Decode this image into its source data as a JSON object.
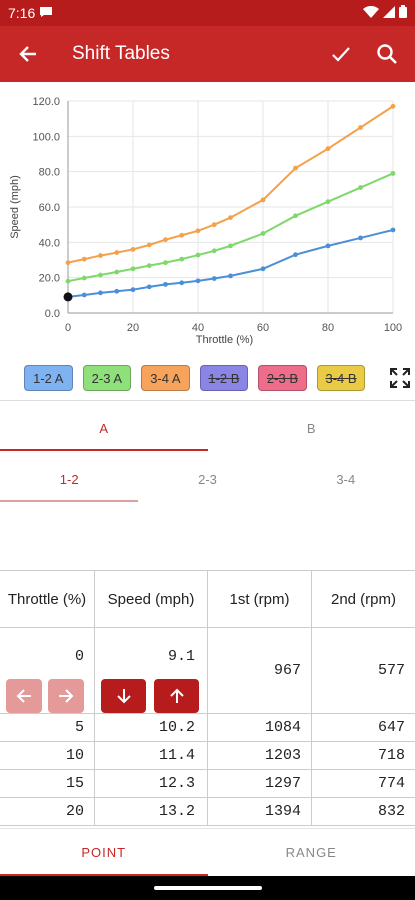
{
  "status_bar": {
    "time": "7:16",
    "icons": [
      "chat-notification-icon",
      "wifi-icon",
      "signal-icon",
      "battery-icon"
    ]
  },
  "app_bar": {
    "title": "Shift Tables",
    "back_icon": "arrow-left-icon",
    "confirm_icon": "check-icon",
    "search_icon": "search-icon",
    "color": "#c62828"
  },
  "chart_data": {
    "type": "line",
    "xlabel": "Throttle (%)",
    "ylabel": "Speed (mph)",
    "xlim": [
      0,
      100
    ],
    "ylim": [
      0,
      120
    ],
    "x_ticks": [
      "0",
      "20",
      "40",
      "60",
      "80",
      "100"
    ],
    "y_ticks": [
      "0.0",
      "20.0",
      "40.0",
      "60.0",
      "80.0",
      "100.0",
      "120.0"
    ],
    "grid": true,
    "selected_point": {
      "x": 0,
      "y": 9.1
    },
    "series": [
      {
        "name": "1-2 A",
        "color": "#4a8fd8",
        "x": [
          0,
          5,
          10,
          15,
          20,
          25,
          30,
          35,
          40,
          45,
          50,
          60,
          70,
          80,
          90,
          100
        ],
        "values": [
          9.1,
          10.2,
          11.4,
          12.3,
          13.2,
          14.8,
          16.2,
          17.1,
          18.2,
          19.5,
          21.0,
          25.0,
          33.0,
          38.0,
          42.5,
          47.0
        ]
      },
      {
        "name": "2-3 A",
        "color": "#7ed86a",
        "x": [
          0,
          5,
          10,
          15,
          20,
          25,
          30,
          35,
          40,
          45,
          50,
          60,
          70,
          80,
          90,
          100
        ],
        "values": [
          18.0,
          19.8,
          21.5,
          23.2,
          25.0,
          26.8,
          28.5,
          30.5,
          32.8,
          35.2,
          38.0,
          45.0,
          55.0,
          63.0,
          71.0,
          79.0
        ]
      },
      {
        "name": "3-4 A",
        "color": "#f5a04a",
        "x": [
          0,
          5,
          10,
          15,
          20,
          25,
          30,
          35,
          40,
          45,
          50,
          60,
          70,
          80,
          90,
          100
        ],
        "values": [
          28.5,
          30.5,
          32.5,
          34.2,
          36.0,
          38.5,
          41.5,
          44.0,
          46.5,
          50.0,
          54.0,
          64.0,
          82.0,
          93.0,
          105.0,
          117.0
        ]
      }
    ]
  },
  "legend": {
    "chips": [
      {
        "label": "1-2 A",
        "color": "#7fb2f0",
        "enabled": true
      },
      {
        "label": "2-3 A",
        "color": "#8fe07a",
        "enabled": true
      },
      {
        "label": "3-4 A",
        "color": "#f7a35c",
        "enabled": true
      },
      {
        "label": "1-2 B",
        "color": "#8b85e6",
        "enabled": false
      },
      {
        "label": "2-3 B",
        "color": "#ee6d8a",
        "enabled": false
      },
      {
        "label": "3-4 B",
        "color": "#eacb45",
        "enabled": false
      }
    ],
    "expand_icon": "fullscreen-icon"
  },
  "tabs_primary": [
    {
      "label": "A",
      "active": true
    },
    {
      "label": "B",
      "active": false
    }
  ],
  "tabs_secondary": [
    {
      "label": "1-2",
      "active": true
    },
    {
      "label": "2-3",
      "active": false
    },
    {
      "label": "3-4",
      "active": false
    }
  ],
  "table": {
    "headers": [
      "Throttle (%)",
      "Speed (mph)",
      "1st (rpm)",
      "2nd (rpm)"
    ],
    "selected_row": {
      "throttle": "0",
      "speed": "9.1",
      "rpm1": "967",
      "rpm2": "577"
    },
    "rows": [
      {
        "throttle": "5",
        "speed": "10.2",
        "rpm1": "1084",
        "rpm2": "647"
      },
      {
        "throttle": "10",
        "speed": "11.4",
        "rpm1": "1203",
        "rpm2": "718"
      },
      {
        "throttle": "15",
        "speed": "12.3",
        "rpm1": "1297",
        "rpm2": "774"
      },
      {
        "throttle": "20",
        "speed": "13.2",
        "rpm1": "1394",
        "rpm2": "832"
      }
    ]
  },
  "bottom_tabs": [
    {
      "label": "POINT",
      "active": true
    },
    {
      "label": "RANGE",
      "active": false
    }
  ]
}
